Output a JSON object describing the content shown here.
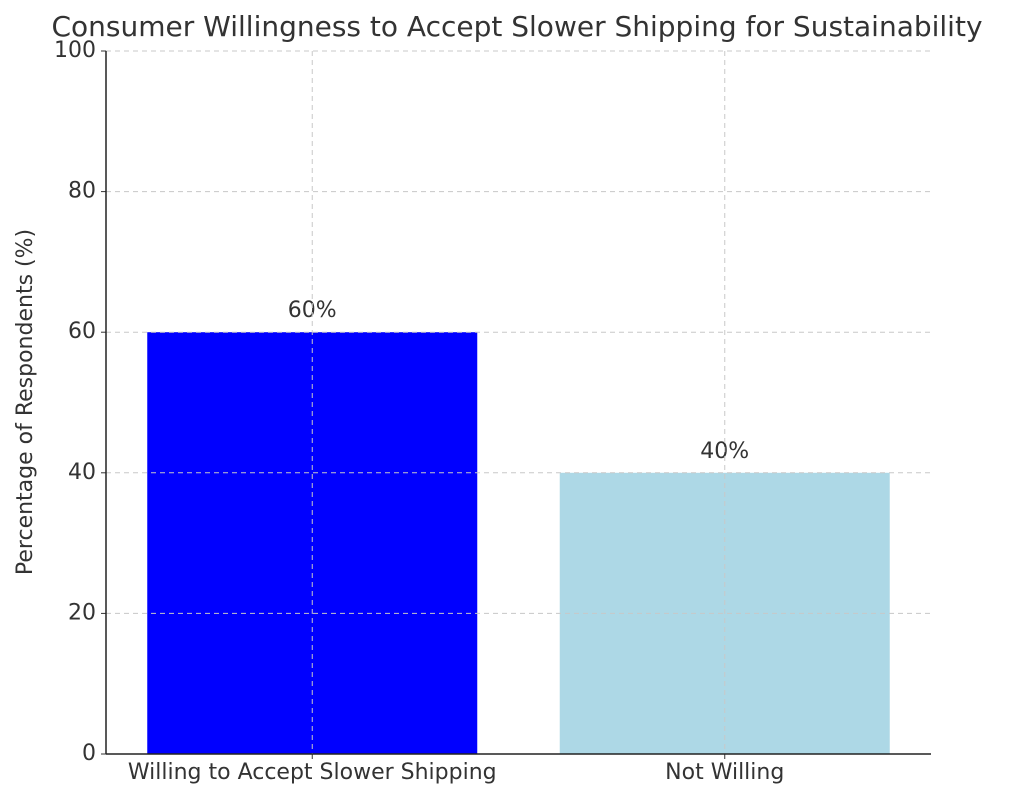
{
  "chart_data": {
    "type": "bar",
    "title": "Consumer Willingness to Accept Slower Shipping for Sustainability",
    "y_label": "Percentage of Respondents (%)",
    "categories": [
      "Willing to Accept Slower Shipping",
      "Not Willing"
    ],
    "values": [
      60,
      40
    ],
    "value_labels": [
      "60%",
      "40%"
    ],
    "colors": [
      "#0000ff",
      "#add8e6"
    ],
    "ylim": [
      0,
      100
    ],
    "yticks": [
      0,
      20,
      40,
      60,
      80,
      100
    ],
    "grid": true
  }
}
